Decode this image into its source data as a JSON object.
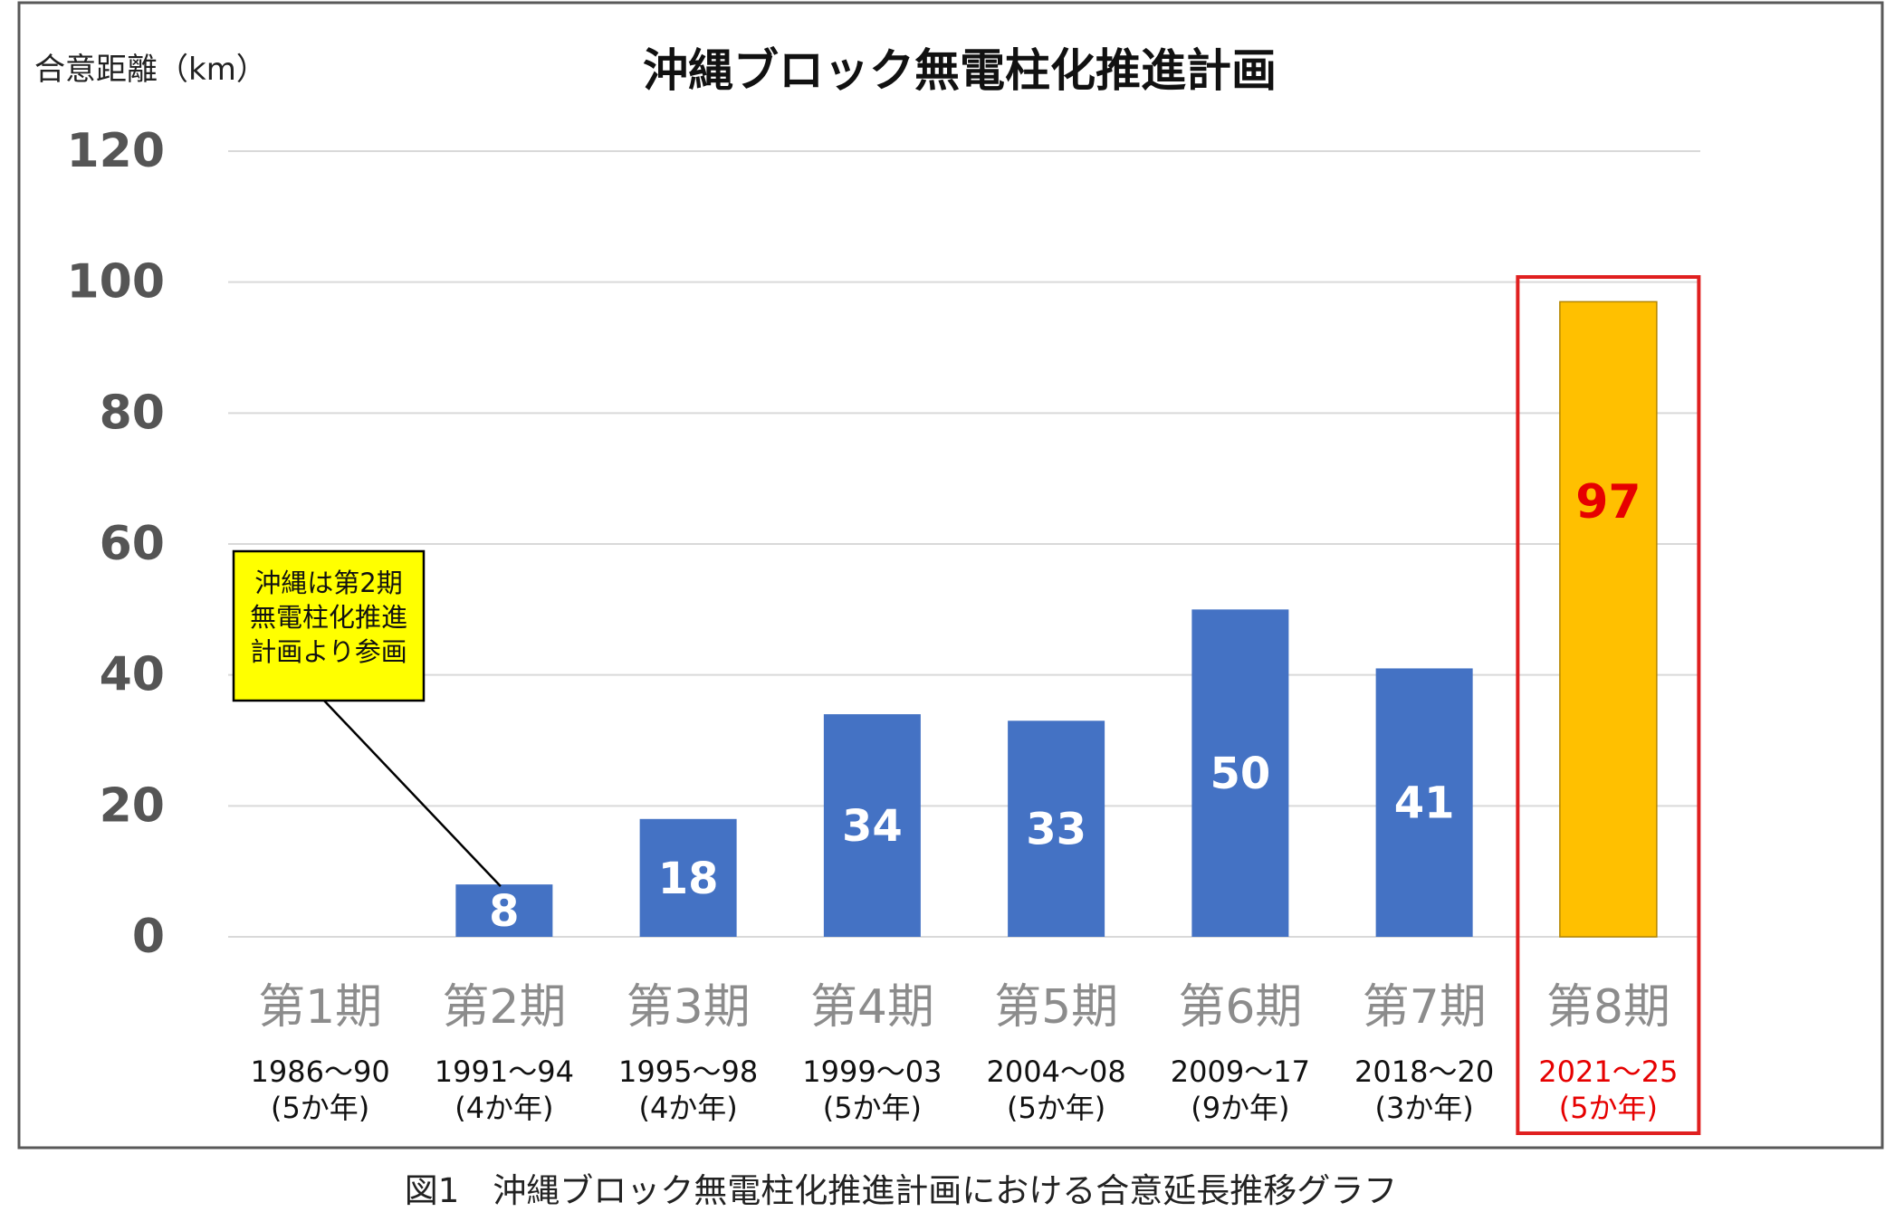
{
  "chart_data": {
    "type": "bar",
    "title": "沖縄ブロック無電柱化推進計画",
    "ylabel": "合意距離（km）",
    "ylim": [
      0,
      120
    ],
    "yticks": [
      "0",
      "20",
      "40",
      "60",
      "80",
      "100",
      "120"
    ],
    "grid": true,
    "categories": [
      "第1期",
      "第2期",
      "第3期",
      "第4期",
      "第5期",
      "第6期",
      "第7期",
      "第8期"
    ],
    "periods": [
      "1986～90",
      "1991～94",
      "1995～98",
      "1999～03",
      "2004～08",
      "2009～17",
      "2018～20",
      "2021～25"
    ],
    "durations": [
      "(5か年)",
      "(4か年)",
      "(4か年)",
      "(5か年)",
      "(5か年)",
      "(9か年)",
      "(3か年)",
      "(5か年)"
    ],
    "values": [
      null,
      8,
      18,
      34,
      33,
      50,
      41,
      97
    ],
    "value_labels": [
      "",
      "8",
      "18",
      "34",
      "33",
      "50",
      "41",
      "97"
    ],
    "bar_colors": [
      "#4472C4",
      "#4472C4",
      "#4472C4",
      "#4472C4",
      "#4472C4",
      "#4472C4",
      "#4472C4",
      "#FFC000"
    ],
    "highlight_color": "#E02020",
    "annotation": {
      "lines": [
        "沖縄は第2期",
        "無電柱化推進",
        "計画より参画"
      ],
      "background": "#FFFF00"
    }
  },
  "caption": "図1　沖縄ブロック無電柱化推進計画における合意延長推移グラフ"
}
